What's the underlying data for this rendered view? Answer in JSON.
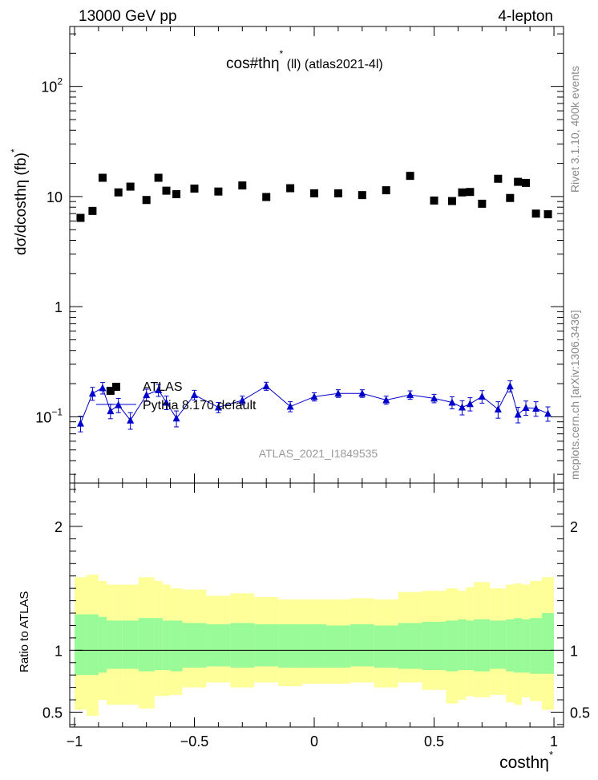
{
  "header": {
    "left": "13000 GeV pp",
    "right": "4-lepton"
  },
  "title": {
    "main": "cos#thη",
    "star": "*",
    "rest": " (ll) (atlas2021-4l)"
  },
  "ylabel_main": "dσ/dcosthη  (fb)",
  "ylabel_main_star": "*",
  "ylabel_ratio": "Ratio to ATLAS",
  "xlabel": "costhη",
  "xlabel_star": "*",
  "side_label_top": "Rivet 3.1.10,  400k events",
  "side_label_bottom": "mcplots.cern.ch [arXiv:1306.3436]",
  "watermark": "ATLAS_2021_I1849535",
  "legend": {
    "data_label": "ATLAS",
    "mc_label": "Pythia 8.170 default"
  },
  "colors": {
    "data": "#000000",
    "mc": "#0000cc",
    "band_inner": "#98fb98",
    "band_outer": "#ffff99"
  },
  "chart_data": {
    "type": "scatter",
    "upper_yscale": "log",
    "upper_ylim": [
      0.025,
      350
    ],
    "xlim": [
      -1.02,
      1.04
    ],
    "ratio_ylim": [
      0.38,
      2.35
    ],
    "x_tick_labels": [
      "−1",
      "−0.5",
      "0",
      "0.5",
      "1"
    ],
    "x_tick_values": [
      -1,
      -0.5,
      0,
      0.5,
      1
    ],
    "upper_tick_labels": [
      {
        "value": 0.1,
        "base": "10",
        "exp": "−1"
      },
      {
        "value": 1,
        "base": "1",
        "exp": ""
      },
      {
        "value": 10,
        "base": "10",
        "exp": ""
      },
      {
        "value": 100,
        "base": "10",
        "exp": "2"
      }
    ],
    "ratio_tick_labels": [
      {
        "value": 0.5,
        "label": "0.5"
      },
      {
        "value": 1,
        "label": "1"
      },
      {
        "value": 2,
        "label": "2"
      }
    ],
    "bin_edges": [
      -1.0,
      -0.95,
      -0.9,
      -0.866,
      -0.833,
      -0.8,
      -0.733,
      -0.666,
      -0.633,
      -0.6,
      -0.55,
      -0.45,
      -0.35,
      -0.25,
      -0.15,
      -0.05,
      0.05,
      0.15,
      0.25,
      0.35,
      0.45,
      0.55,
      0.6,
      0.633,
      0.666,
      0.733,
      0.8,
      0.833,
      0.866,
      0.9,
      0.95,
      1.0
    ],
    "series": [
      {
        "name": "ATLAS",
        "x": [
          -0.975,
          -0.925,
          -0.883,
          -0.85,
          -0.817,
          -0.767,
          -0.7,
          -0.65,
          -0.617,
          -0.575,
          -0.5,
          -0.4,
          -0.3,
          -0.2,
          -0.1,
          0.0,
          0.1,
          0.2,
          0.3,
          0.4,
          0.5,
          0.575,
          0.617,
          0.65,
          0.7,
          0.767,
          0.817,
          0.85,
          0.883,
          0.925,
          0.975
        ],
        "y": [
          6.4,
          7.4,
          14.8,
          0.172,
          10.9,
          12.3,
          9.3,
          14.8,
          11.3,
          10.5,
          11.8,
          11.1,
          12.6,
          9.9,
          11.9,
          10.7,
          10.7,
          10.3,
          11.4,
          15.4,
          9.2,
          9.1,
          10.9,
          11.0,
          8.6,
          14.5,
          9.7,
          13.6,
          13.3,
          7.0,
          6.9
        ]
      },
      {
        "name": "Pythia 8.170 default",
        "x": [
          -0.975,
          -0.925,
          -0.883,
          -0.85,
          -0.817,
          -0.767,
          -0.7,
          -0.65,
          -0.617,
          -0.575,
          -0.5,
          -0.4,
          -0.3,
          -0.2,
          -0.1,
          0.0,
          0.1,
          0.2,
          0.3,
          0.4,
          0.5,
          0.575,
          0.617,
          0.65,
          0.7,
          0.767,
          0.817,
          0.85,
          0.883,
          0.925,
          0.975
        ],
        "y": [
          0.087,
          0.163,
          0.183,
          0.113,
          0.128,
          0.093,
          0.158,
          0.175,
          0.135,
          0.097,
          0.158,
          0.122,
          0.141,
          0.19,
          0.124,
          0.152,
          0.163,
          0.163,
          0.142,
          0.158,
          0.147,
          0.135,
          0.122,
          0.131,
          0.153,
          0.117,
          0.19,
          0.105,
          0.121,
          0.119,
          0.107
        ],
        "err": [
          0.014,
          0.022,
          0.022,
          0.017,
          0.019,
          0.016,
          0.02,
          0.022,
          0.019,
          0.016,
          0.016,
          0.013,
          0.013,
          0.016,
          0.013,
          0.013,
          0.013,
          0.013,
          0.012,
          0.014,
          0.013,
          0.017,
          0.018,
          0.018,
          0.02,
          0.02,
          0.022,
          0.017,
          0.018,
          0.018,
          0.016
        ]
      }
    ],
    "ratio_band_inner": {
      "lo": [
        0.8,
        0.8,
        0.82,
        0.85,
        0.85,
        0.85,
        0.83,
        0.84,
        0.84,
        0.83,
        0.86,
        0.87,
        0.86,
        0.87,
        0.86,
        0.86,
        0.86,
        0.87,
        0.86,
        0.85,
        0.84,
        0.83,
        0.84,
        0.84,
        0.83,
        0.85,
        0.83,
        0.82,
        0.82,
        0.81,
        0.81
      ],
      "hi": [
        1.29,
        1.29,
        1.27,
        1.24,
        1.24,
        1.24,
        1.26,
        1.26,
        1.24,
        1.24,
        1.22,
        1.21,
        1.22,
        1.21,
        1.21,
        1.21,
        1.2,
        1.21,
        1.2,
        1.22,
        1.23,
        1.24,
        1.25,
        1.24,
        1.25,
        1.24,
        1.25,
        1.26,
        1.25,
        1.26,
        1.3
      ]
    },
    "ratio_band_outer": {
      "lo": [
        0.52,
        0.47,
        0.6,
        0.56,
        0.56,
        0.56,
        0.53,
        0.63,
        0.63,
        0.64,
        0.7,
        0.74,
        0.7,
        0.74,
        0.71,
        0.73,
        0.73,
        0.74,
        0.7,
        0.74,
        0.68,
        0.57,
        0.6,
        0.63,
        0.62,
        0.64,
        0.58,
        0.56,
        0.62,
        0.59,
        0.52
      ],
      "hi": [
        1.59,
        1.61,
        1.56,
        1.53,
        1.53,
        1.53,
        1.59,
        1.56,
        1.53,
        1.5,
        1.49,
        1.44,
        1.46,
        1.43,
        1.41,
        1.41,
        1.41,
        1.42,
        1.41,
        1.47,
        1.48,
        1.5,
        1.48,
        1.51,
        1.55,
        1.5,
        1.53,
        1.54,
        1.53,
        1.56,
        1.59
      ]
    },
    "ratio_reference": 1
  }
}
